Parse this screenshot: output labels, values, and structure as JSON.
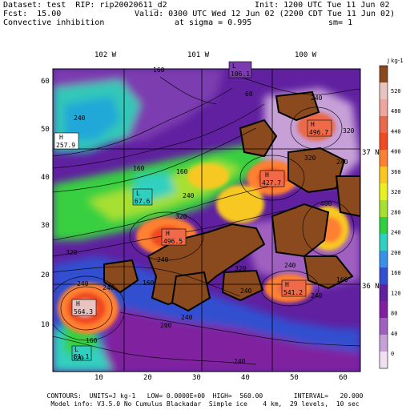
{
  "header": {
    "dataset": "Dataset: test  RIP: rip20020611_d2",
    "init": "Init: 1200 UTC Tue 11 Jun 02",
    "fcst": "Fcst:  15.00",
    "valid": "Valid: 0300 UTC Wed 12 Jun 02 (2200 CDT Tue 11 Jun 02)",
    "field": "Convective inhibition",
    "sigma": "at sigma = 0.995",
    "sm": "sm= 1"
  },
  "lon_labels": [
    "102 W",
    "101 W",
    "100 W"
  ],
  "lat_labels": [
    "37 N",
    "36 N"
  ],
  "x_ticks": [
    "10",
    "20",
    "30",
    "40",
    "50",
    "60"
  ],
  "y_ticks": [
    "60",
    "50",
    "40",
    "30",
    "20",
    "10"
  ],
  "colorbar": {
    "unit": "J kg-1",
    "labels": [
      "520",
      "480",
      "440",
      "400",
      "360",
      "320",
      "280",
      "240",
      "200",
      "160",
      "120",
      "80",
      "40",
      "0"
    ],
    "colors": [
      "#8b4a1e",
      "#e8c4c0",
      "#f0a6a0",
      "#e86a4a",
      "#f04a20",
      "#ff8030",
      "#f8c820",
      "#e8f020",
      "#a8e030",
      "#30d040",
      "#30d0c0",
      "#3890e8",
      "#3050d0",
      "#6020a0",
      "#8020a0",
      "#a060c0",
      "#c8a0d8",
      "#f0e0f0"
    ]
  },
  "features": [
    {
      "kind": "H",
      "value": "257.9"
    },
    {
      "kind": "H",
      "value": "427.7"
    },
    {
      "kind": "H",
      "value": "496.7"
    },
    {
      "kind": "H",
      "value": "496.5"
    },
    {
      "kind": "H",
      "value": "564.3"
    },
    {
      "kind": "H",
      "value": "541.2"
    },
    {
      "kind": "L",
      "value": "67.6"
    },
    {
      "kind": "L",
      "value": "51.1"
    },
    {
      "kind": "L",
      "value": "106.1"
    }
  ],
  "contour_labels": [
    "160",
    "240",
    "60",
    "240",
    "320",
    "240",
    "160",
    "240",
    "320",
    "320",
    "320",
    "240",
    "160",
    "240",
    "240",
    "320",
    "240",
    "400",
    "160",
    "240",
    "240",
    "240",
    "200",
    "160",
    "320",
    "240",
    "160"
  ],
  "footer": {
    "line1": "CONTOURS:  UNITS=J kg-1   LOW= 0.0000E+00  HIGH=  560.00        INTERVAL=   20.000",
    "line2": "Model info: V3.5.0 No Cumulus Blackadar  Simple ice    4 km,  29 levels,  10 sec"
  }
}
